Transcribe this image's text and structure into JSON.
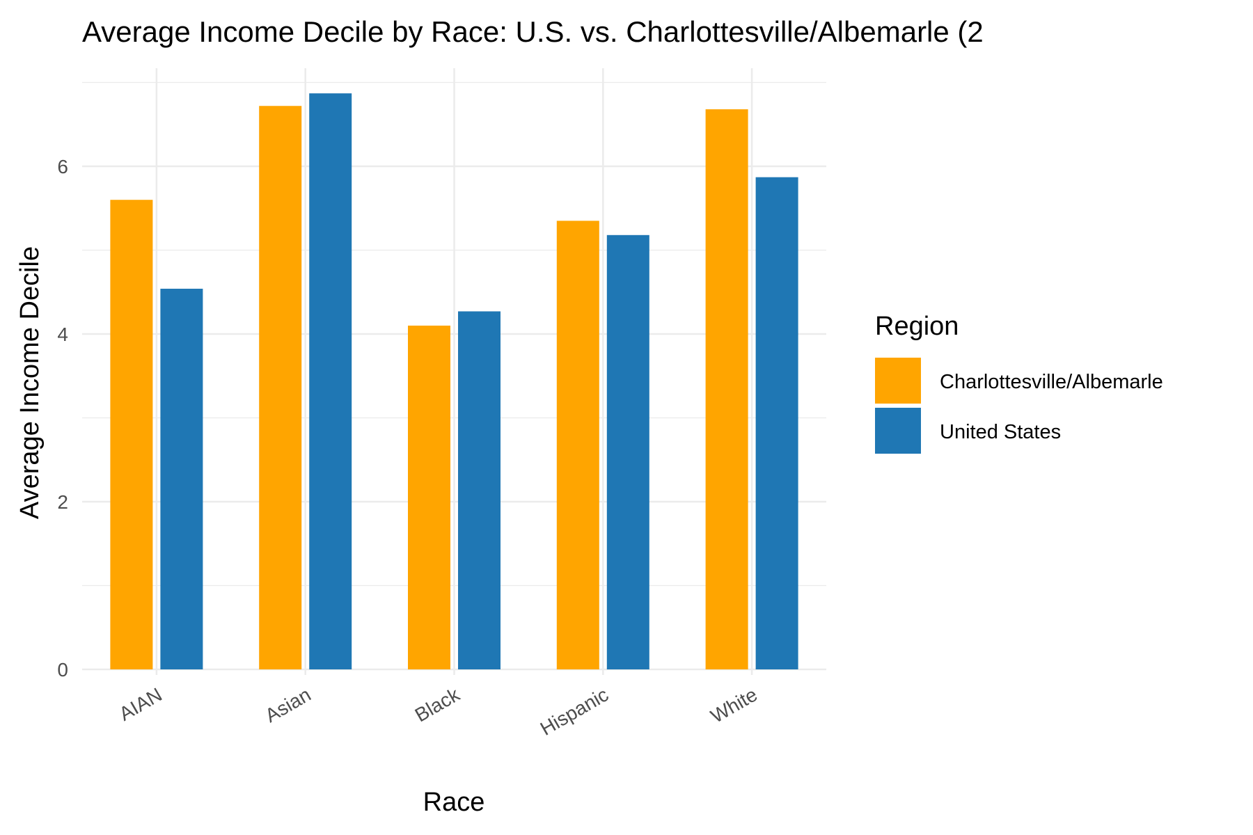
{
  "chart_data": {
    "type": "bar",
    "title": "Average Income Decile by Race: U.S. vs. Charlottesville/Albemarle (2",
    "xlabel": "Race",
    "ylabel": "Average Income Decile",
    "categories": [
      "AIAN",
      "Asian",
      "Black",
      "Hispanic",
      "White"
    ],
    "series": [
      {
        "name": "Charlottesville/Albemarle",
        "color": "#FFA500",
        "values": [
          5.6,
          6.72,
          4.1,
          5.35,
          6.68
        ]
      },
      {
        "name": "United States",
        "color": "#1F77B4",
        "values": [
          4.54,
          6.87,
          4.27,
          5.18,
          5.87
        ]
      }
    ],
    "yticks": [
      "0",
      "2",
      "4",
      "6"
    ],
    "ylim": [
      0,
      7.2
    ],
    "grid": true,
    "legend": {
      "title": "Region",
      "position": "right"
    }
  }
}
